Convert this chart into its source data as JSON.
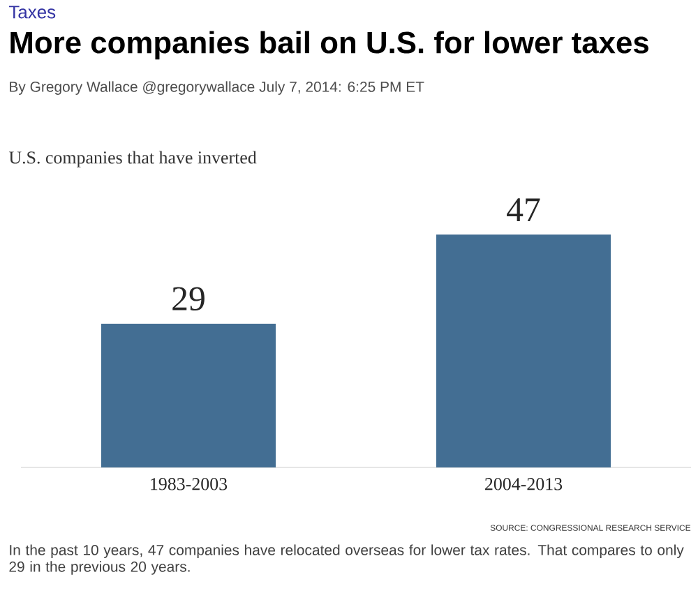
{
  "chart_data": {
    "type": "bar",
    "title": "More companies bail on U.S. for lower taxes",
    "subtitle": "U.S. companies that have inverted",
    "categories": [
      "1983-2003",
      "2004-2013"
    ],
    "values": [
      29,
      47
    ],
    "color": "#436e93",
    "data_labels": true,
    "annotations": [
      "Taxes",
      "By Gregory Wallace @gregorywallace July 7, 2014: 6:25 PM ET",
      "SOURCE: CONGRESSIONAL RESEARCH SERVICE",
      "In the past 10 years, 47 companies have relocated overseas for lower tax rates. That compares to only 29 in the previous 20 years."
    ]
  }
}
